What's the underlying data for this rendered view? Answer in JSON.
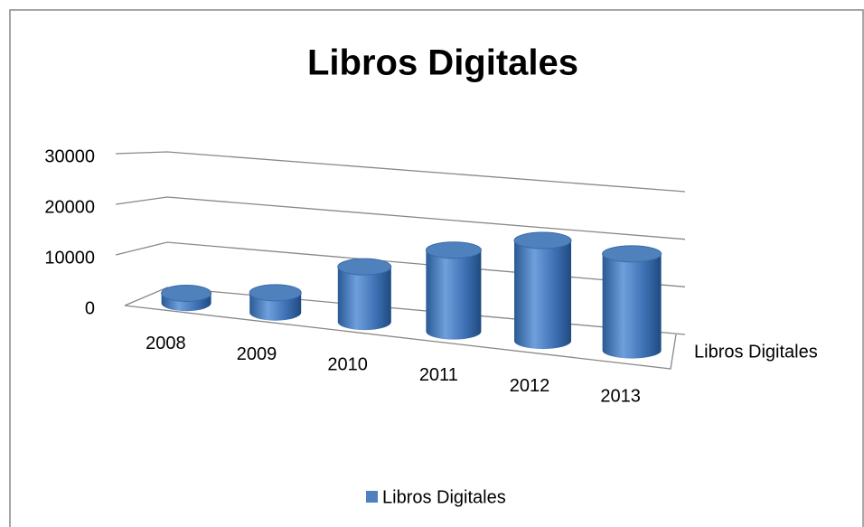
{
  "chart_data": {
    "type": "cylinder3d",
    "title": "Libros Digitales",
    "categories": [
      "2008",
      "2009",
      "2010",
      "2011",
      "2012",
      "2013"
    ],
    "series": [
      {
        "name": "Libros Digitales",
        "color": "#4f81bd",
        "values": [
          2000,
          4000,
          11000,
          16000,
          19500,
          18500
        ]
      }
    ],
    "ylim": [
      0,
      30000
    ],
    "yticks": [
      0,
      10000,
      20000,
      30000
    ],
    "grid": true,
    "legend": "bottom"
  }
}
